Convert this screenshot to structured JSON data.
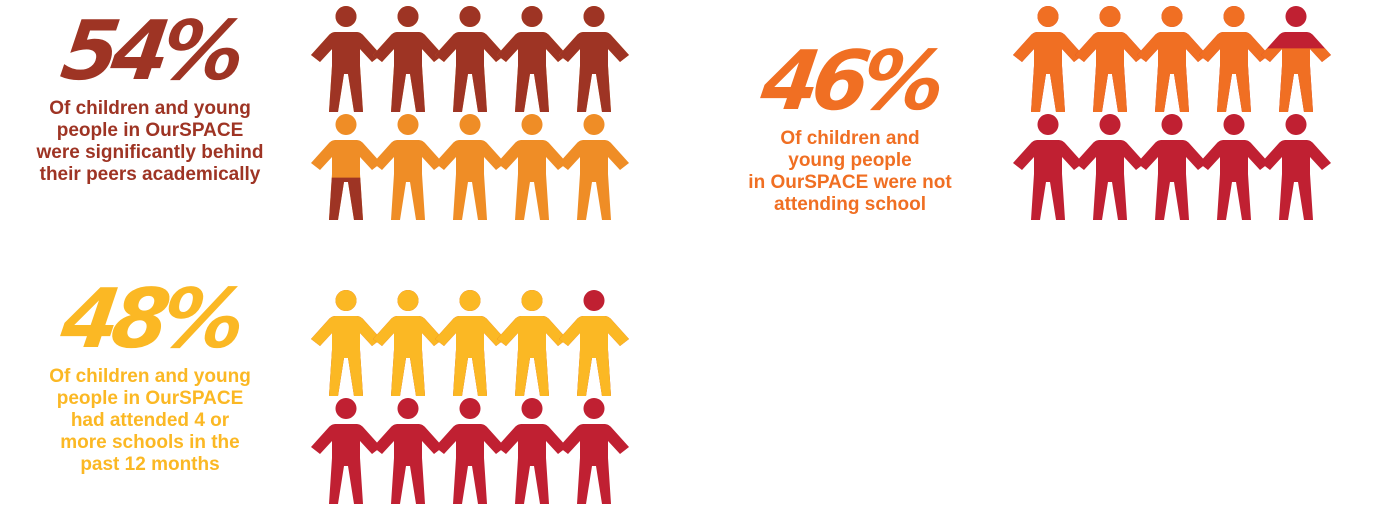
{
  "chart_data": [
    {
      "type": "pictogram",
      "value_percent": 54,
      "percent_label": "54%",
      "caption_lines": [
        "Of children and young",
        "people in OurSPACE",
        "were significantly behind",
        "their peers academically"
      ],
      "icons_total": 10,
      "icons_filled": 5.4,
      "filled_color": "#9e3424",
      "rest_color": "#ef8d26",
      "text_color": "#9e3424"
    },
    {
      "type": "pictogram",
      "value_percent": 46,
      "percent_label": "46%",
      "caption_lines": [
        "Of children and",
        "young people",
        "in OurSPACE were not",
        "attending school"
      ],
      "icons_total": 10,
      "icons_filled": 4.6,
      "filled_color": "#f06f23",
      "rest_color": "#c02032",
      "text_color": "#f06f23"
    },
    {
      "type": "pictogram",
      "value_percent": 48,
      "percent_label": "48%",
      "caption_lines": [
        "Of children and young",
        "people in OurSPACE",
        "had attended 4 or",
        "more schools in the",
        "past 12 months"
      ],
      "icons_total": 10,
      "icons_filled": 4.8,
      "filled_color": "#fbb824",
      "rest_color": "#c02032",
      "text_color": "#fbb824"
    }
  ]
}
